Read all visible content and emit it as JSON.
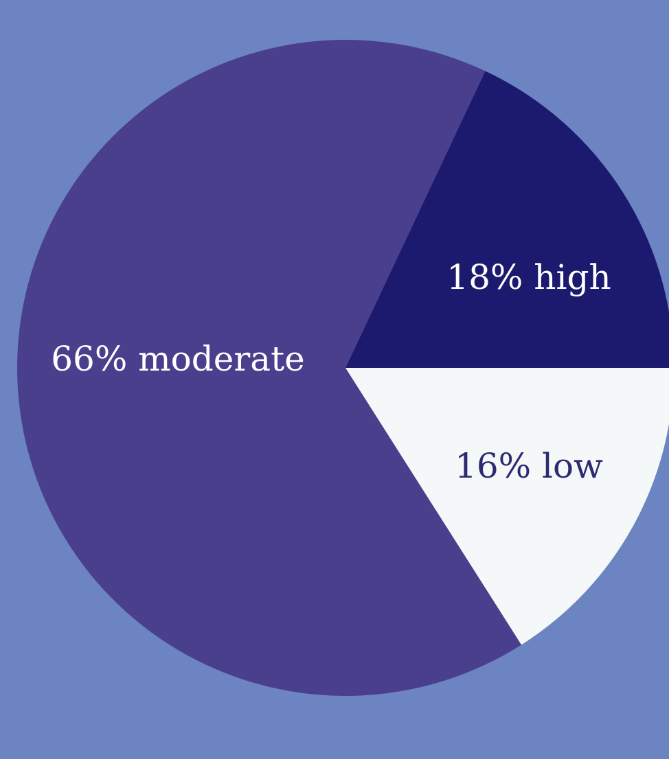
{
  "background_color": "#6c84c2",
  "chart_data": {
    "type": "pie",
    "title": "",
    "start_at": "3 o'clock",
    "direction": "counterclockwise",
    "slices": [
      {
        "label": "high",
        "value": 18,
        "display": "18% high",
        "color": "#1b1a6e",
        "label_color": "#ffffff"
      },
      {
        "label": "moderate",
        "value": 66,
        "display": "66% moderate",
        "color": "#4a3f8c",
        "label_color": "#ffffff"
      },
      {
        "label": "low",
        "value": 16,
        "display": "16% low",
        "color": "#f4f8f8",
        "label_color": "#2e2a72"
      }
    ]
  }
}
